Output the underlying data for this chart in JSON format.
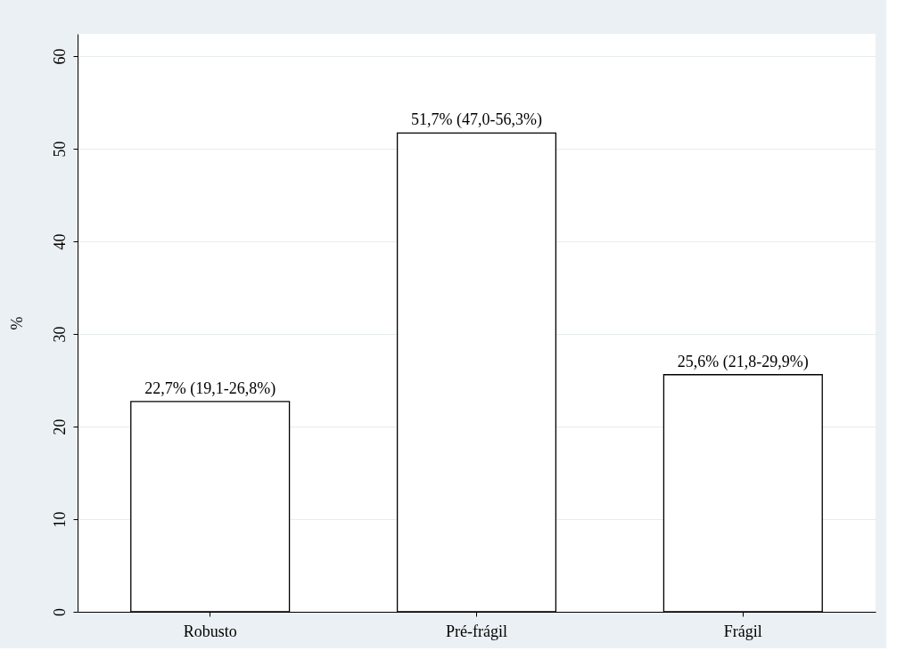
{
  "chart_data": {
    "type": "bar",
    "categories": [
      "Robusto",
      "Pré-frágil",
      "Frágil"
    ],
    "values": [
      22.7,
      51.7,
      25.6
    ],
    "color": "#ffffff",
    "value_labels": [
      "22,7% (19,1-26,8%)",
      "51,7% (47,0-56,3%)",
      "25,6% (21,8-29,9%)"
    ],
    "ylabel": "%",
    "ylim": [
      0,
      62.4
    ],
    "yticks": [
      0,
      10,
      20,
      30,
      40,
      50,
      60
    ],
    "grid": "y"
  }
}
